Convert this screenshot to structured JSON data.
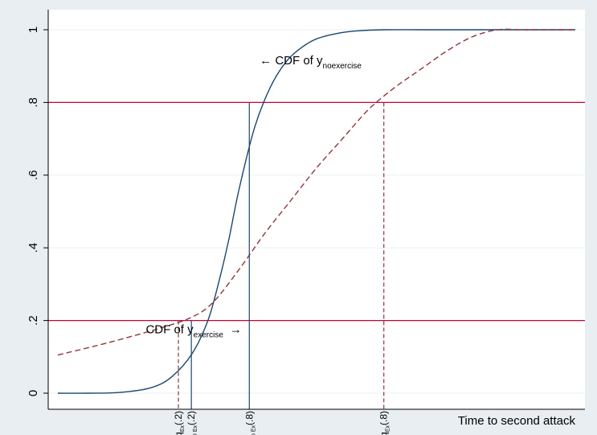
{
  "chart_data": {
    "type": "line",
    "xlabel": "Time to second attack",
    "ylabel": "",
    "xlim": [
      0,
      1
    ],
    "ylim": [
      0,
      1
    ],
    "y_ticks": [
      {
        "value": 0,
        "label": "0"
      },
      {
        "value": 0.2,
        "label": ".2"
      },
      {
        "value": 0.4,
        "label": ".4"
      },
      {
        "value": 0.6,
        "label": ".6"
      },
      {
        "value": 0.8,
        "label": ".8"
      },
      {
        "value": 1,
        "label": "1"
      }
    ],
    "reference_lines": [
      {
        "axis": "y",
        "value": 0.2,
        "color": "#c10534"
      },
      {
        "axis": "y",
        "value": 0.8,
        "color": "#c10534"
      }
    ],
    "series": [
      {
        "style": "solid",
        "color": "#1a476f",
        "x": [
          0,
          0.06,
          0.12,
          0.18,
          0.22,
          0.26,
          0.29,
          0.31,
          0.33,
          0.35,
          0.38,
          0.41,
          0.44,
          0.47,
          0.5,
          0.54,
          0.58,
          0.63,
          0.7,
          0.8,
          0.9,
          1
        ],
        "y": [
          0,
          0,
          0.002,
          0.015,
          0.045,
          0.11,
          0.2,
          0.3,
          0.42,
          0.56,
          0.73,
          0.84,
          0.91,
          0.95,
          0.975,
          0.99,
          0.997,
          1,
          1,
          1,
          1,
          1
        ]
      },
      {
        "style": "dashed",
        "color": "#90353b",
        "x": [
          0,
          0.1,
          0.2,
          0.26,
          0.3,
          0.35,
          0.4,
          0.45,
          0.5,
          0.55,
          0.6,
          0.65,
          0.7,
          0.75,
          0.8,
          0.85,
          0.9,
          1
        ],
        "y": [
          0.105,
          0.14,
          0.18,
          0.21,
          0.25,
          0.34,
          0.44,
          0.53,
          0.62,
          0.7,
          0.78,
          0.84,
          0.89,
          0.94,
          0.98,
          1,
          1,
          1
        ]
      }
    ],
    "quantile_markers": [
      {
        "x": 0.233,
        "y": 0.2,
        "color": "#90353b",
        "style": "dashed",
        "q": "q",
        "sub": "Ex",
        "arg": "(.2)"
      },
      {
        "x": 0.258,
        "y": 0.2,
        "color": "#1a476f",
        "style": "solid",
        "q": "q",
        "sub": "NO Ex",
        "arg": "(.2)"
      },
      {
        "x": 0.37,
        "y": 0.8,
        "color": "#1a476f",
        "style": "solid",
        "q": "q",
        "sub": "No Ex",
        "arg": "(.8)"
      },
      {
        "x": 0.63,
        "y": 0.8,
        "color": "#90353b",
        "style": "dashed",
        "q": "q",
        "sub": "Ex",
        "arg": "(.8)"
      }
    ],
    "annotations": [
      {
        "id": "noexercise",
        "arrow": "←",
        "text": "CDF of y",
        "sub": "noexercise",
        "x": 0.39,
        "y": 0.905
      },
      {
        "id": "exercise",
        "arrow": "→",
        "text": "CDF of y",
        "sub": "exercise",
        "x": 0.17,
        "y": 0.165
      }
    ]
  }
}
